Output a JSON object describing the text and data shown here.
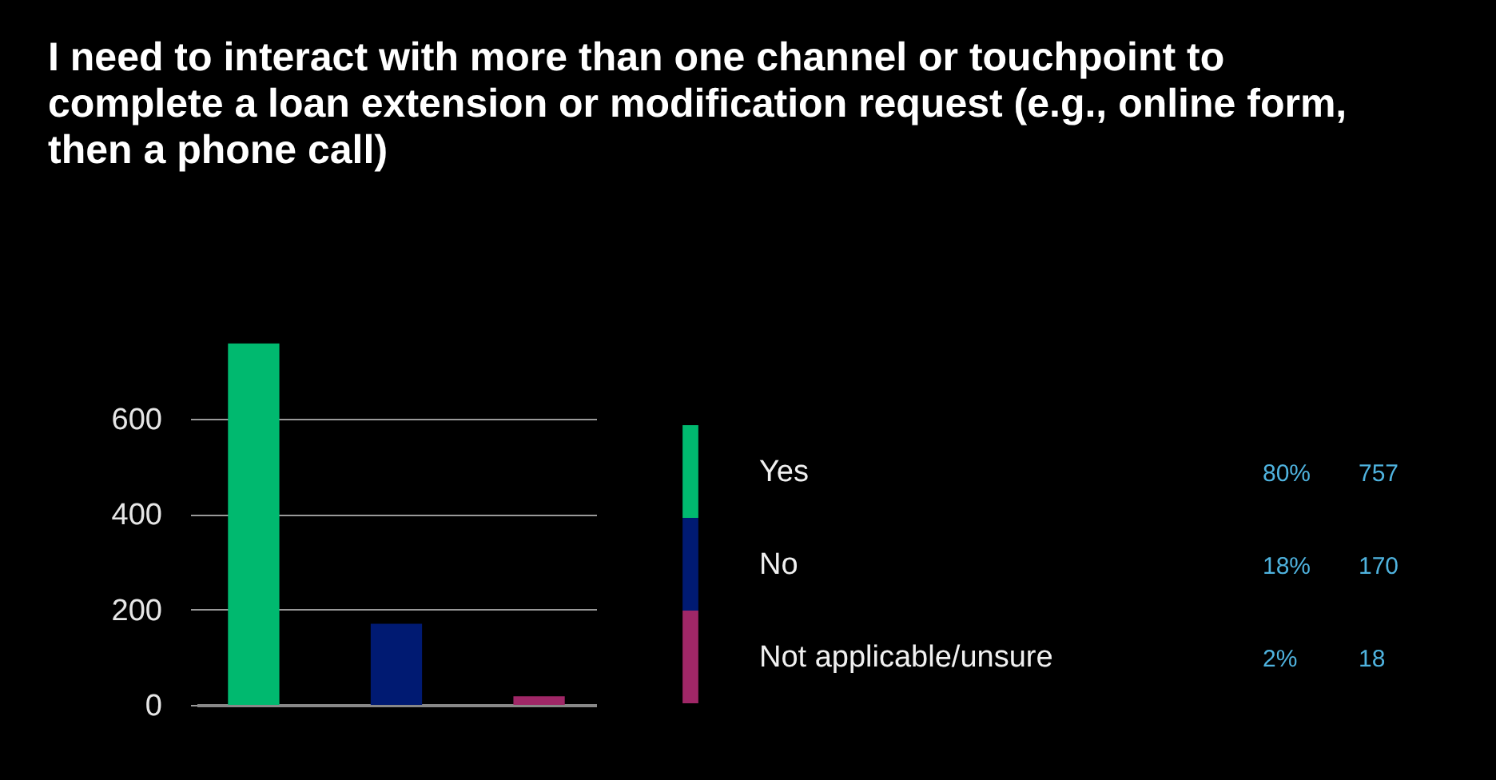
{
  "chart_data": {
    "type": "bar",
    "title": "I need to interact with more than one channel or touchpoint to complete a loan extension or modification request (e.g., online form, then a phone call)",
    "categories": [
      null,
      null,
      null
    ],
    "series": [
      {
        "name": "Yes",
        "color": "#00b96f",
        "values": [
          757,
          null,
          null
        ]
      },
      {
        "name": "No",
        "color": "#001a72",
        "values": [
          null,
          170,
          null
        ]
      },
      {
        "name": "Not applicable/unsure",
        "color": "#a02767",
        "values": [
          null,
          null,
          18
        ]
      }
    ],
    "ylim": [
      0,
      760
    ],
    "yticks": [
      0,
      200,
      400,
      600
    ],
    "grid": "y",
    "legend": "right",
    "tick_labels": "y",
    "annotations": [
      "80%",
      "757",
      "18%",
      "170",
      "2%",
      "18"
    ]
  }
}
